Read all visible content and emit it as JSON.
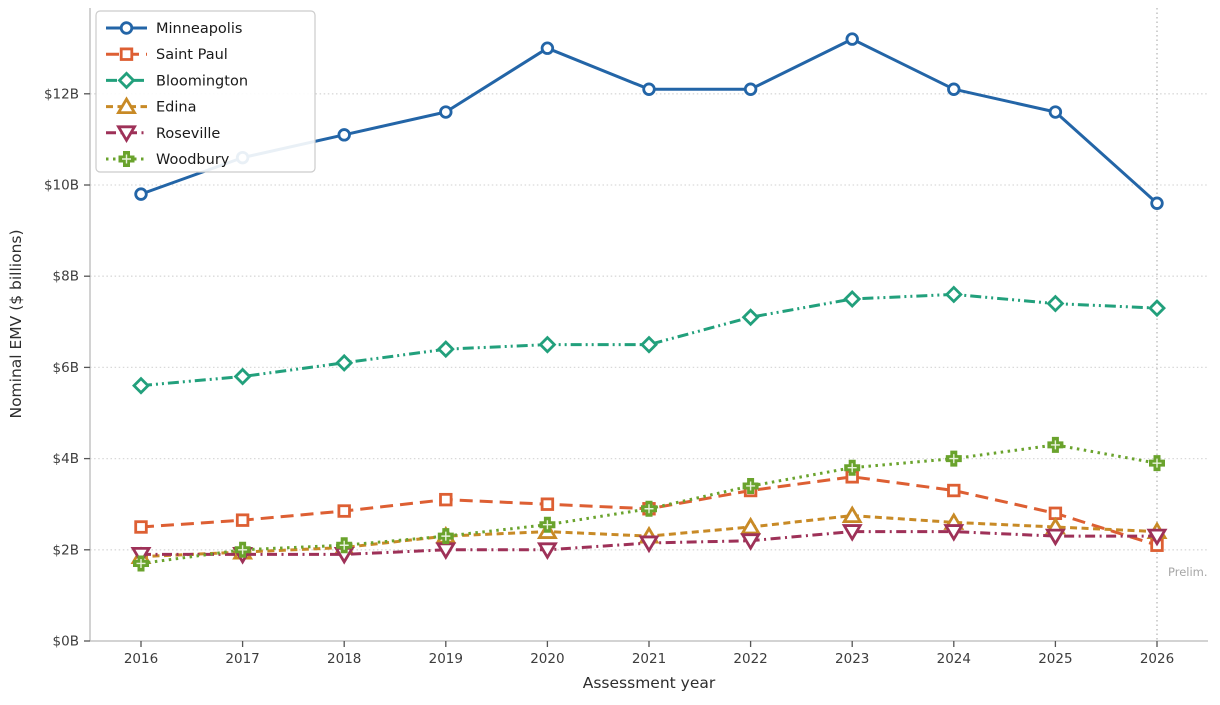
{
  "chart_data": {
    "type": "line",
    "title": "",
    "xlabel": "Assessment year",
    "ylabel": "Nominal EMV ($ billions)",
    "x": [
      2016,
      2017,
      2018,
      2019,
      2020,
      2021,
      2022,
      2023,
      2024,
      2025,
      2026
    ],
    "x_tick_labels": [
      "2016",
      "2017",
      "2018",
      "2019",
      "2020",
      "2021",
      "2022",
      "2023",
      "2024",
      "2025",
      "2026"
    ],
    "y_ticks": [
      {
        "value": 0,
        "label": "$0B"
      },
      {
        "value": 2,
        "label": "$2B"
      },
      {
        "value": 4,
        "label": "$4B"
      },
      {
        "value": 6,
        "label": "$6B"
      },
      {
        "value": 8,
        "label": "$8B"
      },
      {
        "value": 10,
        "label": "$10B"
      },
      {
        "value": 12,
        "label": "$12B"
      }
    ],
    "ylim": [
      0,
      13.9
    ],
    "grid": "horizontal-dotted",
    "grid_color": "#d9d9d9",
    "legend_position": "upper-left",
    "series": [
      {
        "name": "Minneapolis",
        "color": "#2365a7",
        "linestyle": "solid",
        "marker": "circle",
        "values": [
          9.8,
          10.6,
          11.1,
          11.6,
          13.0,
          12.1,
          12.1,
          13.2,
          12.1,
          11.6,
          9.6
        ]
      },
      {
        "name": "Saint Paul",
        "color": "#dd5f33",
        "linestyle": "long-dash",
        "marker": "square",
        "values": [
          2.5,
          2.65,
          2.85,
          3.1,
          3.0,
          2.9,
          3.3,
          3.6,
          3.3,
          2.8,
          2.1
        ]
      },
      {
        "name": "Bloomington",
        "color": "#22a07c",
        "linestyle": "dash-dot-dot",
        "marker": "diamond",
        "values": [
          5.6,
          5.8,
          6.1,
          6.4,
          6.5,
          6.5,
          7.1,
          7.5,
          7.6,
          7.4,
          7.3
        ]
      },
      {
        "name": "Edina",
        "color": "#c88a26",
        "linestyle": "dash",
        "marker": "triangle-up",
        "values": [
          1.85,
          1.95,
          2.05,
          2.3,
          2.4,
          2.3,
          2.5,
          2.75,
          2.6,
          2.5,
          2.4
        ]
      },
      {
        "name": "Roseville",
        "color": "#9e3158",
        "linestyle": "dash-dot",
        "marker": "triangle-down",
        "values": [
          1.9,
          1.9,
          1.9,
          2.0,
          2.0,
          2.15,
          2.2,
          2.4,
          2.4,
          2.3,
          2.3
        ]
      },
      {
        "name": "Woodbury",
        "color": "#6aa32d",
        "linestyle": "dotted",
        "marker": "plus",
        "values": [
          1.7,
          2.0,
          2.1,
          2.3,
          2.55,
          2.9,
          3.4,
          3.8,
          4.0,
          4.3,
          3.9
        ]
      }
    ],
    "vlines": [
      {
        "x": 2026,
        "style": "dotted",
        "color": "#b8b8b8"
      }
    ],
    "annotations": [
      {
        "text": "Prelim.",
        "x": 2026,
        "y": 1.45,
        "color": "#a6a6a6"
      }
    ]
  },
  "colors": {
    "spine": "#b9b9b9",
    "tick_mark": "#555555",
    "tick_label": "#3d3d3d",
    "axis_label": "#2e2e2e",
    "legend_text": "#1a1a1a",
    "legend_border": "#cccccc"
  }
}
